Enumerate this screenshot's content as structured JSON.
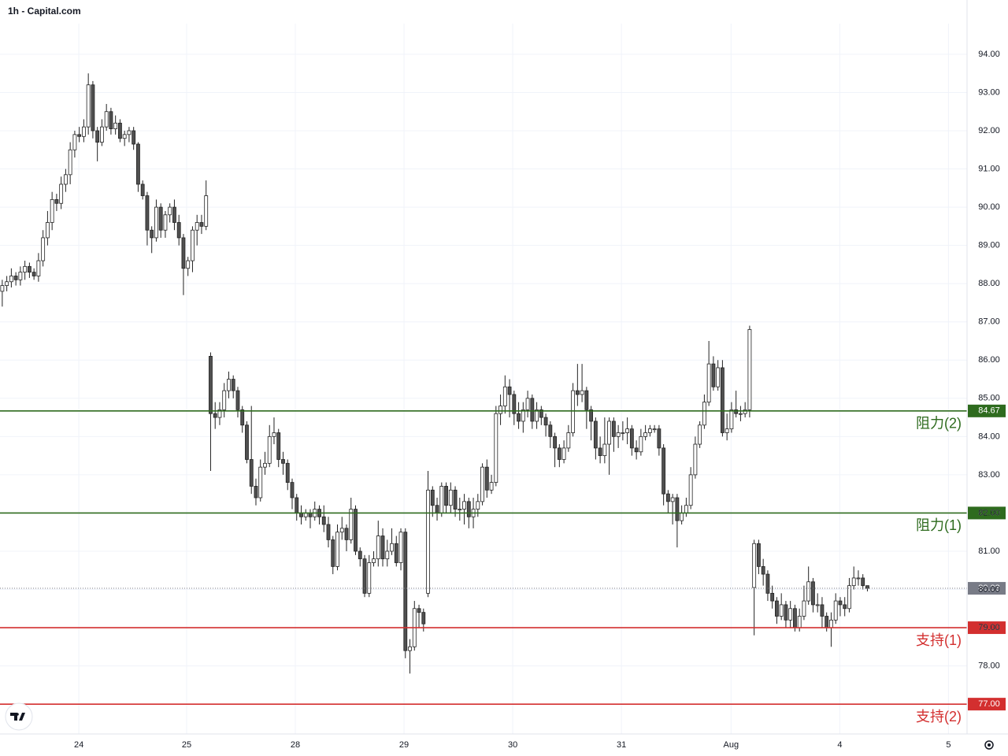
{
  "chart_data": {
    "type": "candlestick",
    "title": "1h - Capital.com",
    "open": [
      87.8,
      87.95,
      88.05,
      88.2,
      88.1,
      88.3,
      88.45,
      88.3,
      88.2,
      88.6,
      89.2,
      89.6,
      90.2,
      90.1,
      90.6,
      90.85,
      91.5,
      91.9,
      91.85,
      92.1,
      93.2,
      92.0,
      91.7,
      92.1,
      92.5,
      92.05,
      92.2,
      91.8,
      91.9,
      92.0,
      91.65,
      90.6,
      90.3,
      89.4,
      89.2,
      90.0,
      89.4,
      89.8,
      90.0,
      89.6,
      89.2,
      88.4,
      88.6,
      89.4,
      89.6,
      89.5,
      86.1,
      84.6,
      84.5,
      84.7,
      85.2,
      85.5,
      85.2,
      84.7,
      84.3,
      83.4,
      82.7,
      82.4,
      83.2,
      83.3,
      84.0,
      84.1,
      83.4,
      83.3,
      82.8,
      82.4,
      82.0,
      81.9,
      82.0,
      81.9,
      82.1,
      81.9,
      81.7,
      81.3,
      80.6,
      81.5,
      81.6,
      81.3,
      82.1,
      81.0,
      80.8,
      79.9,
      80.7,
      80.8,
      81.4,
      80.8,
      81.0,
      81.2,
      80.7,
      81.5,
      78.4,
      78.5,
      79.5,
      79.4,
      79.9,
      82.6,
      82.2,
      82.0,
      82.7,
      82.2,
      82.6,
      82.1,
      82.1,
      82.3,
      81.9,
      82.1,
      82.3,
      83.2,
      82.6,
      82.8,
      84.6,
      84.8,
      85.3,
      85.1,
      84.6,
      84.4,
      84.7,
      85.0,
      84.4,
      84.7,
      84.5,
      84.3,
      84.0,
      83.7,
      83.4,
      83.7,
      84.1,
      85.2,
      85.1,
      85.2,
      84.7,
      84.4,
      83.7,
      83.5,
      83.8,
      84.4,
      84.0,
      84.1,
      84.1,
      84.2,
      83.7,
      83.6,
      84.0,
      84.1,
      84.2,
      84.2,
      83.7,
      82.5,
      82.3,
      82.4,
      81.8,
      82.0,
      82.2,
      83.0,
      83.8,
      84.3,
      84.9,
      85.9,
      85.3,
      85.8,
      84.1,
      84.2,
      84.7,
      84.6,
      84.6,
      84.7,
      80.05,
      81.2,
      80.6,
      80.4,
      79.9,
      79.7,
      79.3,
      79.6,
      79.2,
      79.5,
      79.0,
      79.3,
      79.7,
      80.2,
      79.6,
      79.6,
      79.3,
      79.0,
      79.2,
      79.7,
      79.6,
      79.5,
      80.1,
      80.3,
      80.3,
      80.1
    ],
    "high": [
      88.1,
      88.2,
      88.4,
      88.3,
      88.45,
      88.6,
      88.55,
      88.4,
      88.8,
      89.4,
      89.9,
      90.4,
      90.35,
      90.8,
      91.0,
      91.7,
      92.0,
      92.1,
      92.3,
      93.5,
      93.3,
      92.1,
      92.3,
      92.7,
      92.6,
      92.4,
      92.3,
      92.0,
      92.1,
      92.1,
      91.7,
      90.7,
      90.4,
      89.5,
      90.2,
      90.1,
      89.9,
      90.1,
      90.2,
      89.8,
      89.3,
      88.7,
      89.5,
      89.8,
      89.8,
      90.7,
      86.2,
      84.9,
      84.9,
      85.4,
      85.7,
      85.6,
      85.3,
      84.8,
      84.4,
      84.8,
      82.9,
      83.4,
      83.6,
      84.3,
      84.5,
      84.2,
      83.6,
      83.4,
      82.9,
      82.5,
      82.2,
      82.1,
      82.1,
      82.3,
      82.2,
      82.2,
      81.9,
      81.4,
      81.7,
      81.9,
      81.7,
      82.4,
      82.2,
      81.1,
      80.9,
      80.9,
      81.0,
      81.8,
      81.6,
      81.3,
      81.6,
      81.4,
      81.6,
      81.6,
      78.7,
      79.7,
      79.6,
      79.5,
      83.1,
      82.7,
      82.4,
      82.8,
      82.8,
      82.8,
      82.7,
      82.4,
      82.5,
      82.4,
      82.4,
      82.5,
      83.3,
      83.4,
      83.0,
      84.8,
      85.1,
      85.6,
      85.5,
      85.2,
      84.9,
      84.9,
      85.2,
      85.1,
      84.9,
      84.8,
      84.6,
      84.4,
      84.1,
      83.8,
      83.9,
      84.3,
      85.4,
      85.9,
      85.9,
      85.3,
      84.8,
      84.5,
      84.0,
      84.5,
      84.5,
      84.5,
      84.3,
      84.4,
      84.5,
      84.3,
      83.9,
      84.2,
      84.3,
      84.3,
      84.3,
      84.3,
      83.8,
      82.6,
      82.5,
      82.5,
      82.2,
      82.4,
      83.2,
      84.0,
      84.4,
      85.1,
      86.5,
      86.1,
      86.0,
      86.0,
      84.6,
      84.9,
      85.2,
      84.8,
      84.9,
      86.9,
      81.3,
      81.3,
      80.8,
      80.5,
      80.1,
      79.8,
      79.9,
      79.7,
      79.7,
      79.6,
      79.5,
      80.1,
      80.6,
      80.3,
      79.9,
      79.8,
      79.4,
      79.4,
      79.9,
      79.8,
      79.8,
      80.3,
      80.6,
      80.5,
      80.4,
      80.1
    ],
    "low": [
      87.4,
      87.8,
      87.9,
      87.95,
      87.95,
      88.1,
      88.15,
      88.1,
      88.05,
      88.45,
      89.0,
      89.4,
      89.9,
      89.95,
      90.4,
      90.6,
      91.3,
      91.7,
      91.7,
      91.9,
      91.8,
      91.2,
      91.6,
      92.0,
      91.9,
      91.9,
      91.7,
      91.6,
      91.7,
      91.5,
      90.4,
      90.2,
      89.0,
      88.8,
      89.1,
      89.2,
      89.2,
      89.6,
      89.4,
      89.0,
      87.7,
      88.2,
      88.3,
      89.0,
      89.3,
      89.4,
      83.1,
      84.2,
      84.3,
      84.5,
      85.0,
      85.0,
      84.5,
      84.1,
      83.3,
      82.5,
      82.2,
      82.3,
      83.0,
      83.2,
      83.8,
      83.2,
      83.0,
      82.6,
      82.1,
      81.8,
      81.7,
      81.8,
      81.6,
      81.8,
      81.7,
      81.5,
      81.1,
      80.4,
      80.5,
      81.3,
      81.0,
      81.2,
      80.9,
      80.6,
      79.8,
      79.8,
      80.6,
      80.6,
      80.6,
      80.6,
      80.9,
      80.6,
      80.5,
      78.2,
      77.8,
      78.4,
      79.0,
      78.9,
      79.8,
      81.9,
      81.8,
      81.9,
      82.0,
      82.0,
      81.9,
      81.8,
      81.7,
      81.6,
      81.6,
      81.9,
      82.2,
      82.4,
      82.5,
      82.7,
      84.3,
      84.6,
      84.5,
      84.3,
      84.2,
      84.1,
      84.5,
      84.2,
      84.2,
      84.3,
      84.0,
      83.7,
      83.2,
      83.2,
      83.3,
      83.6,
      84.0,
      84.8,
      84.9,
      84.2,
      83.9,
      83.4,
      83.3,
      83.3,
      83.0,
      83.6,
      83.7,
      83.9,
      83.8,
      83.5,
      83.4,
      83.5,
      83.9,
      84.0,
      84.1,
      83.5,
      82.2,
      82.0,
      81.7,
      81.1,
      81.7,
      81.9,
      82.1,
      82.9,
      83.7,
      84.2,
      84.8,
      85.2,
      85.2,
      84.0,
      83.9,
      84.1,
      84.5,
      84.4,
      84.5,
      84.5,
      78.8,
      80.4,
      80.1,
      79.7,
      79.5,
      79.1,
      79.2,
      79.0,
      79.0,
      78.9,
      78.9,
      79.2,
      79.6,
      79.4,
      79.4,
      79.0,
      78.9,
      78.5,
      79.1,
      79.3,
      79.3,
      79.4,
      80.0,
      80.1,
      80.0,
      79.95
    ],
    "close": [
      87.95,
      88.05,
      88.2,
      88.1,
      88.3,
      88.45,
      88.3,
      88.2,
      88.6,
      89.2,
      89.6,
      90.2,
      90.1,
      90.6,
      90.85,
      91.5,
      91.9,
      91.85,
      92.1,
      93.2,
      92.0,
      91.7,
      92.1,
      92.5,
      92.05,
      92.2,
      91.8,
      91.9,
      92.0,
      91.65,
      90.6,
      90.3,
      89.4,
      89.2,
      90.0,
      89.4,
      89.8,
      90.0,
      89.6,
      89.2,
      88.4,
      88.6,
      89.4,
      89.6,
      89.5,
      90.3,
      84.6,
      84.5,
      84.7,
      85.2,
      85.5,
      85.2,
      84.7,
      84.3,
      83.4,
      82.7,
      82.4,
      83.2,
      83.3,
      84.0,
      84.1,
      83.4,
      83.3,
      82.8,
      82.4,
      82.0,
      81.9,
      82.0,
      81.9,
      82.1,
      81.9,
      81.7,
      81.3,
      80.6,
      81.5,
      81.6,
      81.3,
      82.1,
      81.0,
      80.8,
      79.9,
      80.7,
      80.8,
      81.4,
      80.8,
      81.0,
      81.2,
      80.7,
      81.5,
      78.4,
      78.5,
      79.5,
      79.4,
      79.1,
      82.6,
      82.2,
      82.0,
      82.7,
      82.2,
      82.6,
      82.1,
      82.1,
      82.3,
      81.9,
      82.1,
      82.3,
      83.2,
      82.6,
      82.8,
      84.6,
      84.8,
      85.3,
      85.1,
      84.6,
      84.4,
      84.7,
      85.0,
      84.4,
      84.7,
      84.5,
      84.3,
      84.0,
      83.7,
      83.4,
      83.7,
      84.1,
      85.2,
      85.1,
      85.2,
      84.7,
      84.4,
      83.7,
      83.5,
      83.8,
      84.4,
      84.0,
      84.1,
      84.1,
      84.2,
      83.7,
      83.6,
      84.0,
      84.1,
      84.2,
      84.2,
      83.7,
      82.5,
      82.3,
      82.4,
      81.8,
      82.0,
      82.2,
      83.0,
      83.8,
      84.3,
      84.9,
      85.9,
      85.3,
      85.8,
      84.1,
      84.2,
      84.7,
      84.6,
      84.6,
      84.7,
      86.8,
      81.2,
      80.6,
      80.4,
      79.9,
      79.7,
      79.3,
      79.6,
      79.2,
      79.5,
      79.0,
      79.3,
      79.7,
      80.2,
      79.6,
      79.6,
      79.3,
      79.0,
      79.2,
      79.7,
      79.6,
      79.5,
      80.1,
      80.3,
      80.3,
      80.1,
      80.03
    ],
    "up_color": "#ffffff",
    "down_color": "#505050",
    "border_color": "#222222",
    "xlim": [
      -0.5,
      213
    ],
    "xticks": [
      {
        "value": 16.9,
        "label": "24"
      },
      {
        "value": 40.7,
        "label": "25"
      },
      {
        "value": 64.7,
        "label": "28"
      },
      {
        "value": 88.7,
        "label": "29"
      },
      {
        "value": 112.7,
        "label": "30"
      },
      {
        "value": 136.7,
        "label": "31"
      },
      {
        "value": 160.9,
        "label": "Aug"
      },
      {
        "value": 184.9,
        "label": "4"
      },
      {
        "value": 208.9,
        "label": "5"
      }
    ],
    "ylim": [
      76.22,
      95.42
    ],
    "yticks": [
      {
        "value": 78,
        "label": "78.00"
      },
      {
        "value": 79,
        "label": "79.00"
      },
      {
        "value": 80,
        "label": "80.00"
      },
      {
        "value": 81,
        "label": "81.00"
      },
      {
        "value": 82,
        "label": "82.00"
      },
      {
        "value": 83,
        "label": "83.00"
      },
      {
        "value": 84,
        "label": "84.00"
      },
      {
        "value": 85,
        "label": "85.00"
      },
      {
        "value": 86,
        "label": "86.00"
      },
      {
        "value": 87,
        "label": "87.00"
      },
      {
        "value": 88,
        "label": "88.00"
      },
      {
        "value": 89,
        "label": "89.00"
      },
      {
        "value": 90,
        "label": "90.00"
      },
      {
        "value": 91,
        "label": "91.00"
      },
      {
        "value": 92,
        "label": "92.00"
      },
      {
        "value": 93,
        "label": "93.00"
      },
      {
        "value": 94,
        "label": "94.00"
      }
    ],
    "grid": true,
    "levels": {
      "values": [
        84.67,
        82,
        79,
        77
      ],
      "value_labels": [
        "84.67",
        "82.00",
        "79.00",
        "77.00"
      ],
      "names": [
        "阻力(2)",
        "阻力(1)",
        "支持(1)",
        "支持(2)"
      ],
      "colors": [
        "#2e6b1e",
        "#2e6b1e",
        "#d32f2f",
        "#d32f2f"
      ]
    },
    "last_price": 80.03,
    "last_price_color": "#787b86"
  }
}
